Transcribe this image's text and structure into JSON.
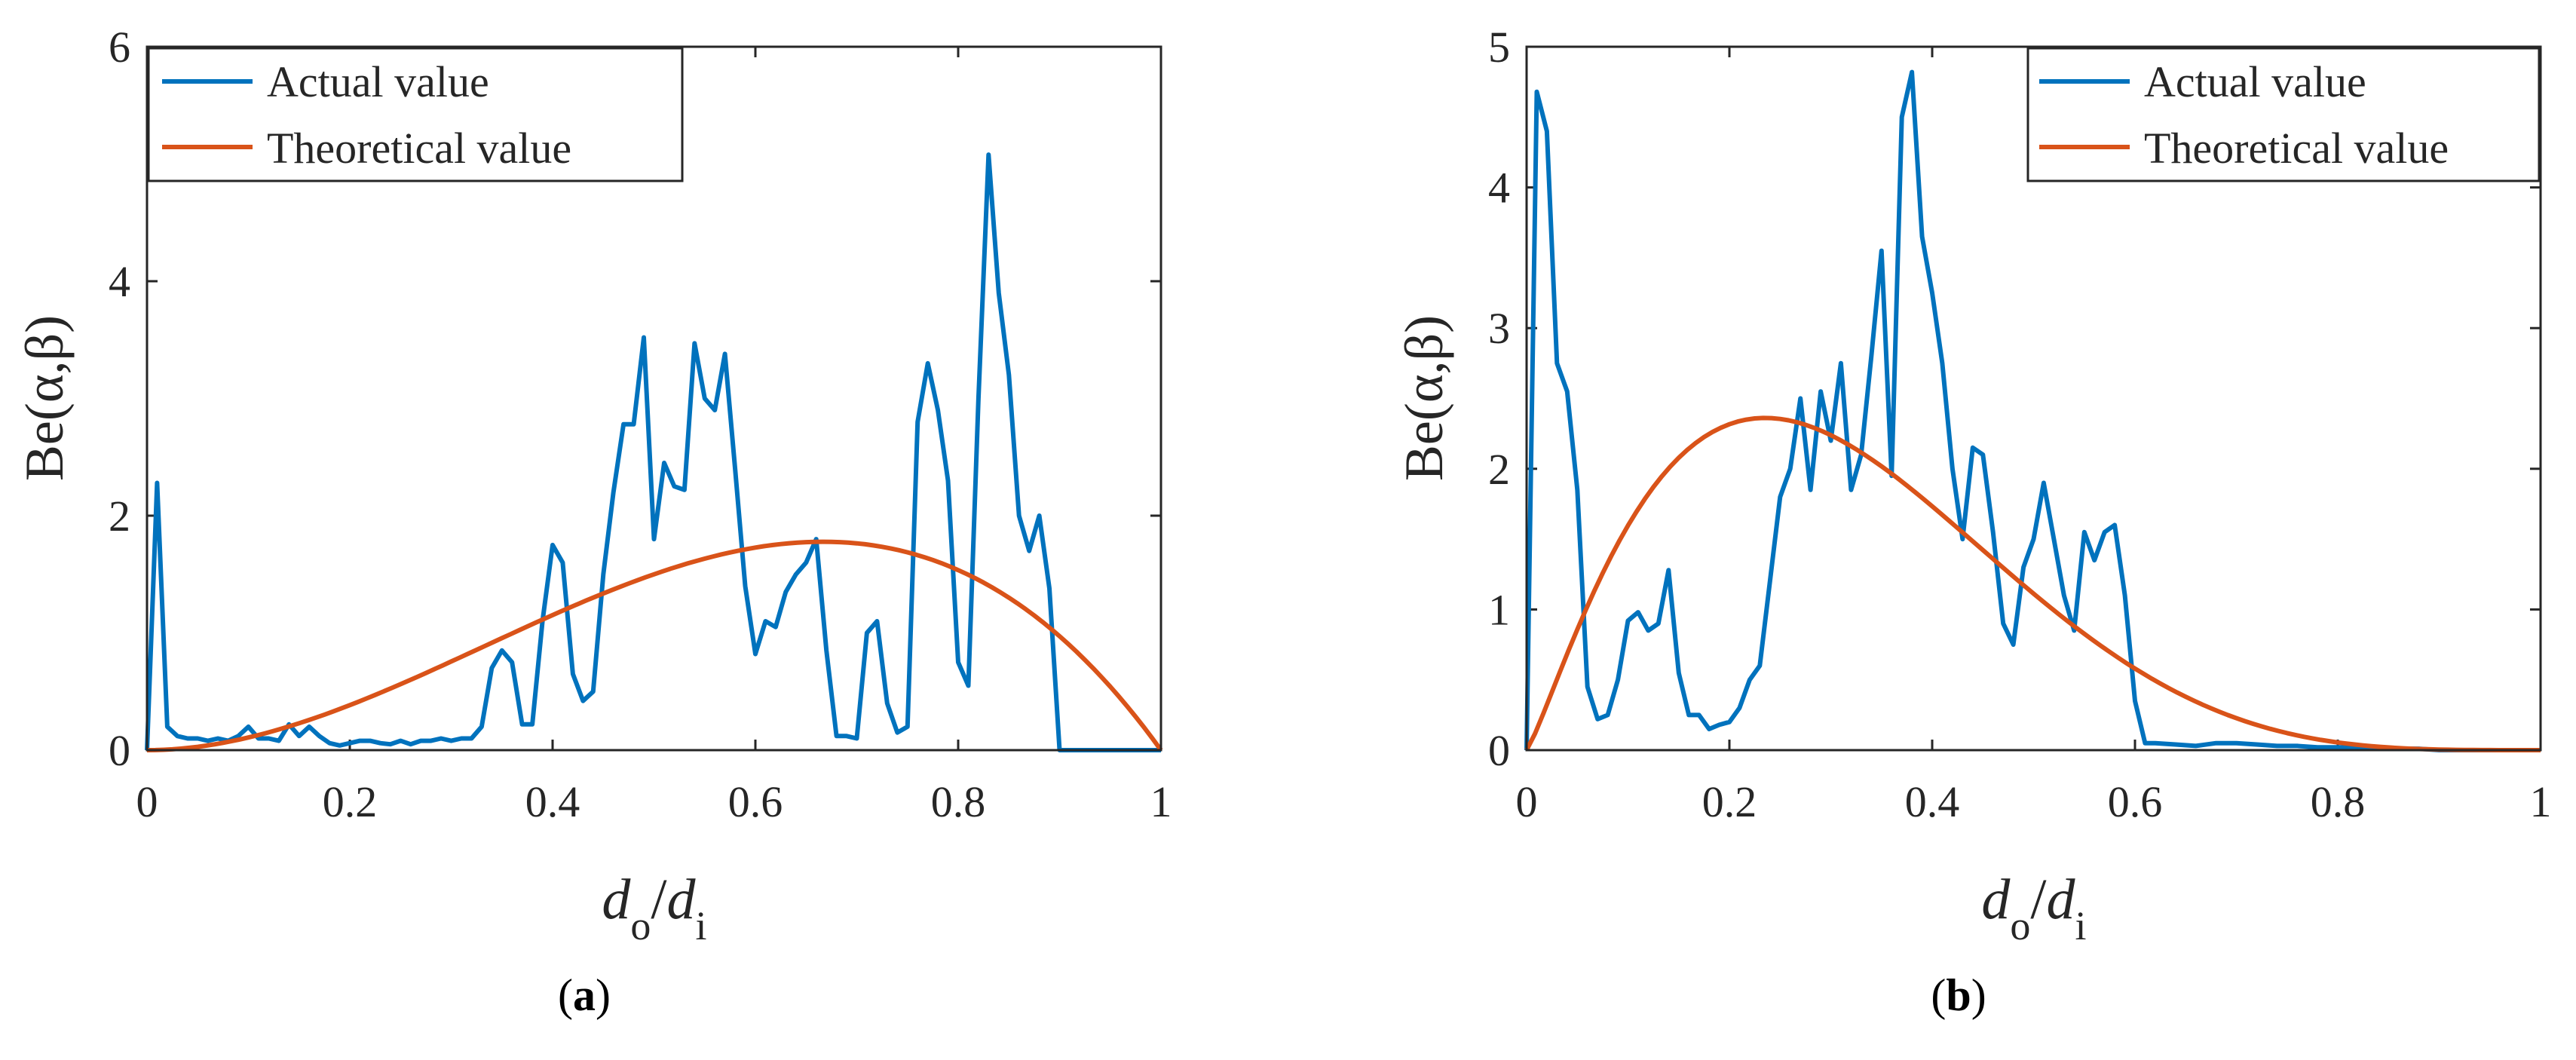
{
  "colors": {
    "actual": "#0072BD",
    "theoretical": "#D95319",
    "axis": "#262626"
  },
  "chart_data": [
    {
      "type": "line",
      "caption": {
        "open": "(",
        "letter": "a",
        "close": ")"
      },
      "ylabel": "Be(α,β)",
      "xlabel": {
        "main1": "d",
        "sub1": "o",
        "slash": "/",
        "main2": "d",
        "sub2": "i"
      },
      "xlim": [
        0,
        1
      ],
      "ylim": [
        0,
        6
      ],
      "xticks": [
        0,
        0.2,
        0.4,
        0.6,
        0.8,
        1
      ],
      "xtick_labels": [
        "0",
        "0.2",
        "0.4",
        "0.6",
        "0.8",
        "1"
      ],
      "yticks": [
        0,
        2,
        4,
        6
      ],
      "ytick_labels": [
        "0",
        "2",
        "4",
        "6"
      ],
      "legend": {
        "position": "top-left",
        "entries": [
          "Actual value",
          "Theoretical value"
        ]
      },
      "series": [
        {
          "name": "Actual value",
          "x": [
            0,
            0.01,
            0.02,
            0.03,
            0.04,
            0.05,
            0.06,
            0.07,
            0.08,
            0.09,
            0.1,
            0.11,
            0.12,
            0.13,
            0.14,
            0.15,
            0.16,
            0.17,
            0.18,
            0.19,
            0.2,
            0.21,
            0.22,
            0.23,
            0.24,
            0.25,
            0.26,
            0.27,
            0.28,
            0.29,
            0.3,
            0.31,
            0.32,
            0.33,
            0.34,
            0.35,
            0.36,
            0.37,
            0.38,
            0.39,
            0.4,
            0.41,
            0.42,
            0.43,
            0.44,
            0.45,
            0.46,
            0.47,
            0.48,
            0.49,
            0.5,
            0.51,
            0.52,
            0.53,
            0.54,
            0.55,
            0.56,
            0.57,
            0.58,
            0.59,
            0.6,
            0.61,
            0.62,
            0.63,
            0.64,
            0.65,
            0.66,
            0.67,
            0.68,
            0.69,
            0.7,
            0.71,
            0.72,
            0.73,
            0.74,
            0.75,
            0.76,
            0.77,
            0.78,
            0.79,
            0.8,
            0.81,
            0.82,
            0.83,
            0.84,
            0.85,
            0.86,
            0.87,
            0.88,
            0.89,
            0.9,
            0.95,
            1.0
          ],
          "y": [
            0,
            2.28,
            0.2,
            0.12,
            0.1,
            0.1,
            0.08,
            0.1,
            0.08,
            0.12,
            0.2,
            0.1,
            0.1,
            0.08,
            0.22,
            0.12,
            0.2,
            0.12,
            0.06,
            0.04,
            0.06,
            0.08,
            0.08,
            0.06,
            0.05,
            0.08,
            0.05,
            0.08,
            0.08,
            0.1,
            0.08,
            0.1,
            0.1,
            0.2,
            0.7,
            0.85,
            0.75,
            0.22,
            0.22,
            1.1,
            1.75,
            1.6,
            0.65,
            0.42,
            0.5,
            1.5,
            2.2,
            2.78,
            2.78,
            3.52,
            1.8,
            2.45,
            2.25,
            2.22,
            3.47,
            3.0,
            2.9,
            3.38,
            2.4,
            1.4,
            0.82,
            1.1,
            1.05,
            1.35,
            1.5,
            1.6,
            1.8,
            0.85,
            0.12,
            0.12,
            0.1,
            1.0,
            1.1,
            0.4,
            0.15,
            0.2,
            2.8,
            3.3,
            2.9,
            2.3,
            0.75,
            0.55,
            3.0,
            5.08,
            3.9,
            3.2,
            2.0,
            1.7,
            2.0,
            1.38,
            0,
            0,
            0
          ]
        },
        {
          "name": "Theoretical value",
          "curve": {
            "a": 3.0,
            "b": 2.0,
            "n": 120
          }
        }
      ]
    },
    {
      "type": "line",
      "caption": {
        "open": "(",
        "letter": "b",
        "close": ")"
      },
      "ylabel": "Be(α,β)",
      "xlabel": {
        "main1": "d",
        "sub1": "o",
        "slash": "/",
        "main2": "d",
        "sub2": "i"
      },
      "xlim": [
        0,
        1
      ],
      "ylim": [
        0,
        5
      ],
      "xticks": [
        0,
        0.2,
        0.4,
        0.6,
        0.8,
        1
      ],
      "xtick_labels": [
        "0",
        "0.2",
        "0.4",
        "0.6",
        "0.8",
        "1"
      ],
      "yticks": [
        0,
        1,
        2,
        3,
        4,
        5
      ],
      "ytick_labels": [
        "0",
        "1",
        "2",
        "3",
        "4",
        "5"
      ],
      "legend": {
        "position": "top-right",
        "entries": [
          "Actual value",
          "Theoretical value"
        ]
      },
      "series": [
        {
          "name": "Actual value",
          "x": [
            0,
            0.01,
            0.02,
            0.03,
            0.04,
            0.05,
            0.06,
            0.07,
            0.08,
            0.09,
            0.1,
            0.11,
            0.12,
            0.13,
            0.14,
            0.15,
            0.16,
            0.17,
            0.18,
            0.19,
            0.2,
            0.21,
            0.22,
            0.23,
            0.24,
            0.25,
            0.26,
            0.27,
            0.28,
            0.29,
            0.3,
            0.31,
            0.32,
            0.33,
            0.34,
            0.35,
            0.36,
            0.37,
            0.38,
            0.39,
            0.4,
            0.41,
            0.42,
            0.43,
            0.44,
            0.45,
            0.46,
            0.47,
            0.48,
            0.49,
            0.5,
            0.51,
            0.52,
            0.53,
            0.54,
            0.55,
            0.56,
            0.57,
            0.58,
            0.59,
            0.6,
            0.61,
            0.62,
            0.64,
            0.66,
            0.68,
            0.7,
            0.72,
            0.74,
            0.76,
            0.78,
            0.8,
            0.82,
            0.84,
            0.86,
            0.88,
            0.9,
            0.95,
            1.0
          ],
          "y": [
            0,
            4.68,
            4.4,
            2.75,
            2.55,
            1.85,
            0.45,
            0.22,
            0.25,
            0.5,
            0.92,
            0.98,
            0.85,
            0.9,
            1.28,
            0.55,
            0.25,
            0.25,
            0.15,
            0.18,
            0.2,
            0.3,
            0.5,
            0.6,
            1.2,
            1.8,
            2.0,
            2.5,
            1.85,
            2.55,
            2.2,
            2.75,
            1.85,
            2.1,
            2.8,
            3.55,
            1.95,
            4.5,
            4.82,
            3.65,
            3.25,
            2.75,
            2.0,
            1.5,
            2.15,
            2.1,
            1.55,
            0.9,
            0.75,
            1.3,
            1.5,
            1.9,
            1.5,
            1.1,
            0.85,
            1.55,
            1.35,
            1.55,
            1.6,
            1.1,
            0.35,
            0.05,
            0.05,
            0.04,
            0.03,
            0.05,
            0.05,
            0.04,
            0.03,
            0.03,
            0.02,
            0.02,
            0.02,
            0.01,
            0.01,
            0.01,
            0,
            0,
            0
          ]
        },
        {
          "name": "Theoretical value",
          "curve": {
            "a": 2.2,
            "b": 4.9,
            "n": 120
          }
        }
      ]
    }
  ]
}
